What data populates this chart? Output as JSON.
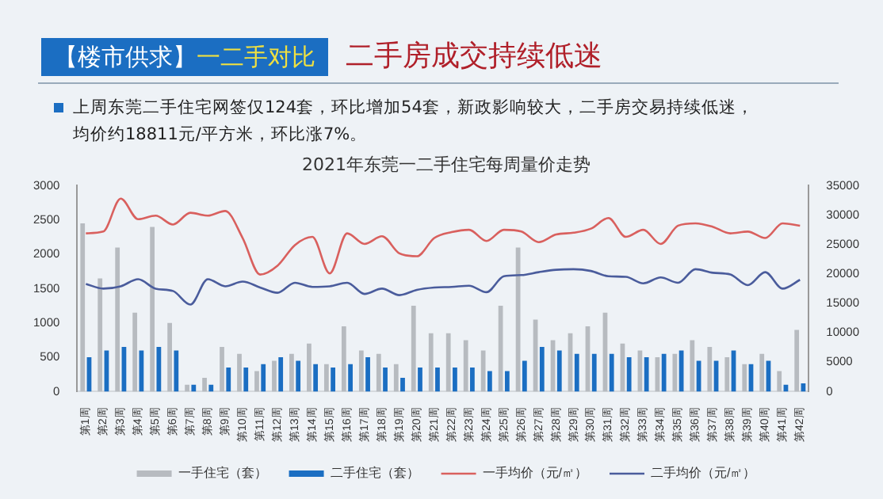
{
  "chart_data": {
    "type": "bar",
    "title": "2021年东莞一二手住宅每周量价走势",
    "annotations": [
      "【楼市供求】",
      "一二手对比",
      "二手房成交持续低迷",
      "上周东莞二手住宅网签仅124套，环比增加54套，新政影响较大，二手房交易持续低迷，均价约18811元/平方米，环比涨7%。"
    ],
    "categories": [
      "第1周",
      "第2周",
      "第3周",
      "第4周",
      "第5周",
      "第6周",
      "第7周",
      "第8周",
      "第9周",
      "第10周",
      "第11周",
      "第12周",
      "第13周",
      "第14周",
      "第15周",
      "第16周",
      "第17周",
      "第18周",
      "第19周",
      "第20周",
      "第21周",
      "第22周",
      "第23周",
      "第24周",
      "第25周",
      "第26周",
      "第27周",
      "第28周",
      "第29周",
      "第30周",
      "第31周",
      "第32周",
      "第33周",
      "第34周",
      "第35周",
      "第36周",
      "第37周",
      "第38周",
      "第39周",
      "第40周",
      "第41周",
      "第42周"
    ],
    "series": [
      {
        "name": "一手住宅（套）",
        "color": "#b7bbc0",
        "values": [
          2450,
          1650,
          2100,
          1150,
          2400,
          1000,
          100,
          200,
          650,
          550,
          300,
          450,
          550,
          700,
          400,
          950,
          600,
          550,
          400,
          1250,
          850,
          850,
          750,
          600,
          1250,
          2100,
          1050,
          750,
          850,
          950,
          1150,
          700,
          600,
          500,
          550,
          750,
          650,
          500,
          400,
          550,
          300,
          900
        ]
      },
      {
        "name": "二手住宅（套）",
        "color": "#1b6ec2",
        "values": [
          500,
          600,
          650,
          600,
          650,
          600,
          100,
          100,
          350,
          350,
          400,
          500,
          450,
          400,
          350,
          400,
          500,
          350,
          200,
          350,
          350,
          350,
          350,
          300,
          300,
          450,
          650,
          600,
          550,
          550,
          550,
          500,
          500,
          550,
          600,
          450,
          450,
          600,
          400,
          450,
          100,
          120
        ]
      },
      {
        "name": "一手均价（元/㎡）",
        "type": "line",
        "axis": "y2",
        "color": "#d9605e",
        "values": [
          26900,
          27200,
          32800,
          29300,
          29900,
          28400,
          30400,
          29900,
          30700,
          26100,
          19900,
          21400,
          24900,
          26300,
          20100,
          26900,
          25100,
          26400,
          23500,
          23000,
          26100,
          27100,
          27500,
          25600,
          27500,
          27200,
          25400,
          26700,
          27000,
          27700,
          29500,
          26300,
          27500,
          25100,
          28200,
          28600,
          28000,
          26900,
          27200,
          26100,
          28600,
          28200
        ]
      },
      {
        "name": "二手均价（元/㎡）",
        "type": "line",
        "axis": "y2",
        "color": "#4a5c9c",
        "values": [
          18300,
          17500,
          17900,
          19100,
          17500,
          17100,
          14800,
          19100,
          17900,
          18700,
          17700,
          16800,
          18500,
          17800,
          17900,
          18500,
          16600,
          17500,
          16400,
          17300,
          17700,
          17800,
          18000,
          16900,
          19600,
          19800,
          20300,
          20700,
          20800,
          20500,
          19600,
          19500,
          18400,
          19400,
          18500,
          20800,
          20200,
          19900,
          18100,
          20300,
          17500,
          19000
        ]
      }
    ],
    "ylim": [
      0,
      3000
    ],
    "yticks": [
      0,
      500,
      1000,
      1500,
      2000,
      2500,
      3000
    ],
    "y2lim": [
      0,
      35000
    ],
    "y2ticks": [
      0,
      5000,
      10000,
      15000,
      20000,
      25000,
      30000,
      35000
    ],
    "grid": false,
    "legend": "bottom",
    "marker": "none"
  }
}
